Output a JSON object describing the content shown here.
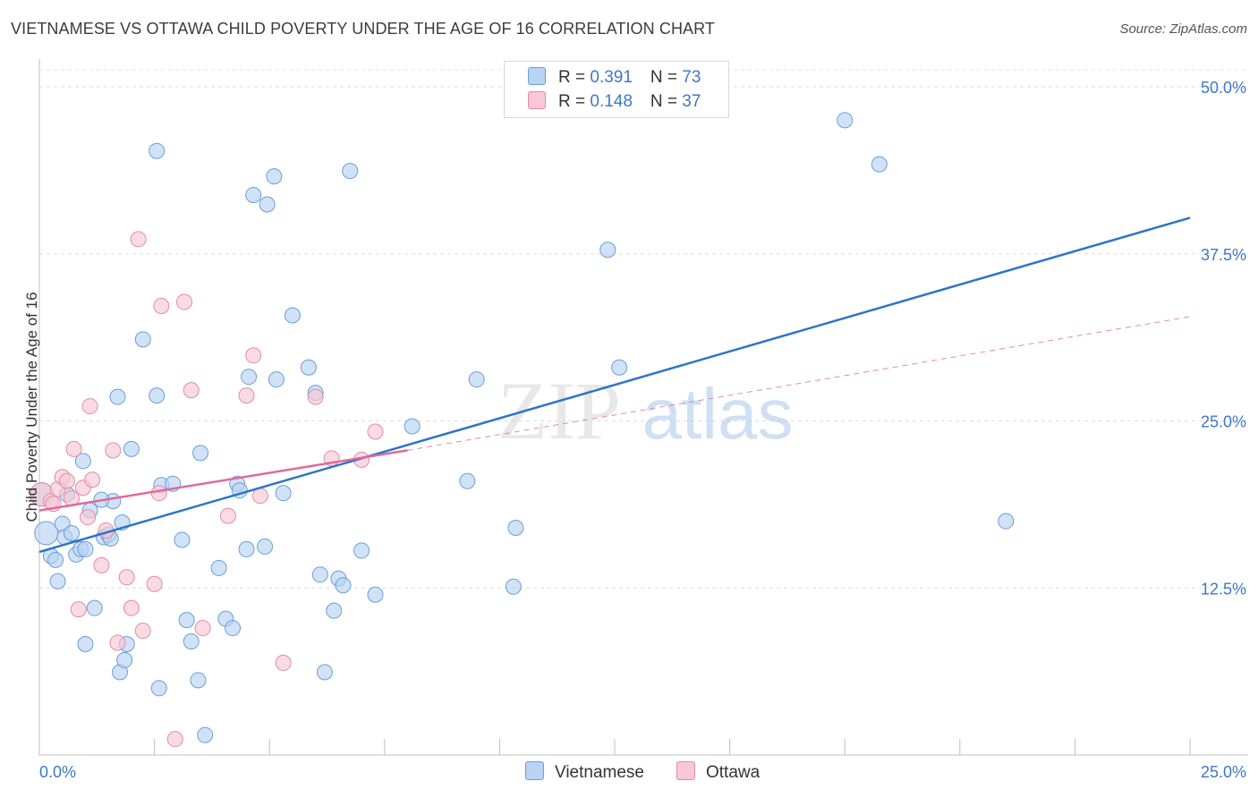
{
  "title": "VIETNAMESE VS OTTAWA CHILD POVERTY UNDER THE AGE OF 16 CORRELATION CHART",
  "source": "Source: ZipAtlas.com",
  "watermark": {
    "part1": "ZIP",
    "part2": "atlas"
  },
  "legend": {
    "rows": [
      {
        "r_label": "R = ",
        "r_value": "0.391",
        "n_label": "N = ",
        "n_value": "73"
      },
      {
        "r_label": "R = ",
        "r_value": "0.148",
        "n_label": "N = ",
        "n_value": "37"
      }
    ]
  },
  "bottom_legend": [
    "Vietnamese",
    "Ottawa"
  ],
  "colors": {
    "vietnamese_fill": "#b8d3f3",
    "vietnamese_stroke": "#6a9fd8",
    "vietnamese_line": "#2e74c9",
    "ottawa_fill": "#f8c8d6",
    "ottawa_stroke": "#e58aa6",
    "ottawa_line": "#e0699a",
    "axis_label": "#3b78c8"
  },
  "chart_data": {
    "type": "scatter",
    "title": "VIETNAMESE VS OTTAWA CHILD POVERTY UNDER THE AGE OF 16 CORRELATION CHART",
    "xlabel": "",
    "ylabel": "Child Poverty Under the Age of 16",
    "xlim": [
      0,
      25
    ],
    "ylim": [
      0,
      50
    ],
    "x_tick_labels": [
      "0.0%",
      "25.0%"
    ],
    "y_tick_labels": [
      "12.5%",
      "25.0%",
      "37.5%",
      "50.0%"
    ],
    "y_ticks": [
      12.5,
      25.0,
      37.5,
      50.0
    ],
    "grid": true,
    "series": [
      {
        "name": "Vietnamese",
        "r": 0.391,
        "n": 73,
        "trend": {
          "x": [
            0,
            25
          ],
          "y": [
            15.2,
            40.2
          ],
          "style": "solid"
        },
        "points": [
          [
            0.15,
            16.6,
            "L"
          ],
          [
            0.25,
            14.9
          ],
          [
            0.35,
            14.6
          ],
          [
            0.4,
            13.0
          ],
          [
            0.5,
            17.3
          ],
          [
            0.55,
            16.3
          ],
          [
            0.6,
            19.5
          ],
          [
            0.7,
            16.6
          ],
          [
            0.8,
            15.0
          ],
          [
            0.9,
            15.4
          ],
          [
            1.0,
            15.4
          ],
          [
            1.1,
            18.3
          ],
          [
            1.2,
            11.0
          ],
          [
            1.4,
            16.3
          ],
          [
            1.5,
            16.5
          ],
          [
            1.6,
            19.0
          ],
          [
            1.8,
            17.4
          ],
          [
            2.0,
            22.9
          ],
          [
            0.95,
            22.0
          ],
          [
            1.35,
            19.1
          ],
          [
            1.55,
            16.2
          ],
          [
            1.7,
            26.8
          ],
          [
            1.75,
            6.2
          ],
          [
            1.85,
            7.1
          ],
          [
            1.9,
            8.3
          ],
          [
            2.25,
            31.1
          ],
          [
            2.55,
            45.2
          ],
          [
            2.55,
            26.9
          ],
          [
            2.6,
            5.0
          ],
          [
            2.65,
            20.2
          ],
          [
            2.9,
            20.3
          ],
          [
            3.1,
            16.1
          ],
          [
            3.2,
            10.1
          ],
          [
            3.3,
            8.5
          ],
          [
            3.45,
            5.6
          ],
          [
            3.5,
            22.6
          ],
          [
            3.6,
            1.5
          ],
          [
            3.9,
            14.0
          ],
          [
            4.05,
            10.2
          ],
          [
            4.2,
            9.5
          ],
          [
            4.3,
            20.3
          ],
          [
            4.35,
            19.8
          ],
          [
            4.5,
            15.4
          ],
          [
            4.55,
            28.3
          ],
          [
            4.65,
            41.9
          ],
          [
            4.9,
            15.6
          ],
          [
            4.95,
            41.2
          ],
          [
            5.1,
            43.3
          ],
          [
            5.15,
            28.1
          ],
          [
            5.3,
            19.6
          ],
          [
            5.5,
            32.9
          ],
          [
            5.85,
            29.0
          ],
          [
            6.0,
            27.1
          ],
          [
            6.1,
            13.5
          ],
          [
            6.2,
            6.2
          ],
          [
            6.4,
            10.8
          ],
          [
            6.5,
            13.2
          ],
          [
            6.6,
            12.7
          ],
          [
            6.75,
            43.7
          ],
          [
            7.0,
            15.3
          ],
          [
            7.3,
            12.0
          ],
          [
            8.1,
            24.6
          ],
          [
            9.3,
            20.5
          ],
          [
            9.5,
            28.1
          ],
          [
            10.3,
            12.6
          ],
          [
            10.35,
            17.0
          ],
          [
            12.35,
            37.8
          ],
          [
            12.6,
            29.0
          ],
          [
            17.5,
            47.5
          ],
          [
            18.25,
            44.2
          ],
          [
            21.0,
            17.5
          ],
          [
            1.0,
            8.3
          ],
          [
            0.05,
            19.5,
            "L"
          ]
        ]
      },
      {
        "name": "Ottawa",
        "r": 0.148,
        "n": 37,
        "trend": {
          "x": [
            0,
            8.0,
            25
          ],
          "y": [
            18.3,
            22.8,
            32.8
          ],
          "solid_until": 8.0
        },
        "points": [
          [
            0.05,
            19.5,
            "L"
          ],
          [
            0.25,
            19.0
          ],
          [
            0.4,
            19.9
          ],
          [
            0.5,
            20.8
          ],
          [
            0.6,
            20.5
          ],
          [
            0.7,
            19.2
          ],
          [
            0.75,
            22.9
          ],
          [
            0.85,
            10.9
          ],
          [
            0.95,
            20.0
          ],
          [
            1.05,
            17.8
          ],
          [
            1.15,
            20.6
          ],
          [
            1.1,
            26.1
          ],
          [
            1.35,
            14.2
          ],
          [
            1.45,
            16.8
          ],
          [
            1.6,
            22.8
          ],
          [
            1.7,
            8.4
          ],
          [
            1.9,
            13.3
          ],
          [
            2.0,
            11.0
          ],
          [
            2.15,
            38.6
          ],
          [
            2.25,
            9.3
          ],
          [
            2.5,
            12.8
          ],
          [
            2.6,
            19.6
          ],
          [
            2.65,
            33.6
          ],
          [
            2.95,
            1.2
          ],
          [
            3.15,
            33.9
          ],
          [
            3.3,
            27.3
          ],
          [
            3.55,
            9.5
          ],
          [
            4.1,
            17.9
          ],
          [
            4.5,
            26.9
          ],
          [
            4.65,
            29.9
          ],
          [
            4.8,
            19.4
          ],
          [
            5.3,
            6.9
          ],
          [
            6.0,
            26.8
          ],
          [
            6.35,
            22.2
          ],
          [
            7.0,
            22.1
          ],
          [
            7.3,
            24.2
          ],
          [
            0.3,
            18.8
          ]
        ]
      }
    ]
  }
}
